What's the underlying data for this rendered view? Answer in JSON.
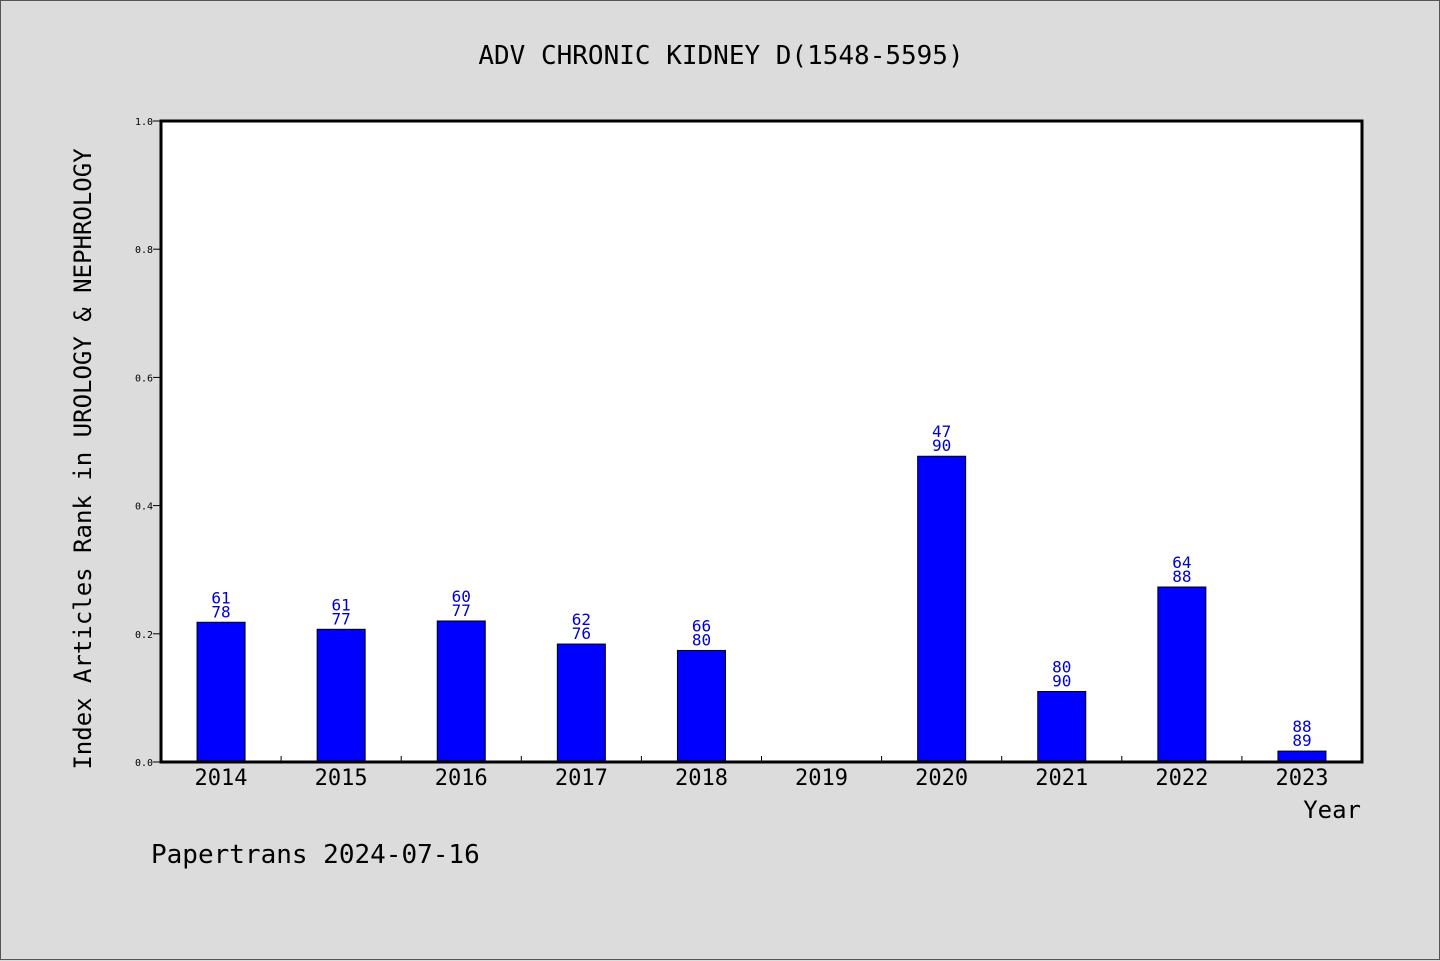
{
  "chart_data": {
    "type": "bar",
    "title": "ADV CHRONIC KIDNEY D(1548-5595)",
    "xlabel": "Year",
    "ylabel": "Index Articles Rank in UROLOGY & NEPHROLOGY",
    "ylim": [
      0,
      1.0
    ],
    "yticks": [
      "0.0",
      "0.2",
      "0.4",
      "0.6",
      "0.8",
      "1.0"
    ],
    "categories": [
      "2014",
      "2015",
      "2016",
      "2017",
      "2018",
      "2019",
      "2020",
      "2021",
      "2022",
      "2023"
    ],
    "values": [
      0.218,
      0.207,
      0.22,
      0.184,
      0.174,
      null,
      0.477,
      0.11,
      0.273,
      0.017
    ],
    "labels_top": [
      "61",
      "61",
      "60",
      "62",
      "66",
      "",
      "47",
      "80",
      "64",
      "88"
    ],
    "labels_bottom": [
      "78",
      "77",
      "77",
      "76",
      "80",
      "",
      "90",
      "90",
      "88",
      "89"
    ],
    "bar_color": "#0000ff",
    "label_color": "#0000cc",
    "grid": false
  },
  "footer": "Papertrans 2024-07-16"
}
